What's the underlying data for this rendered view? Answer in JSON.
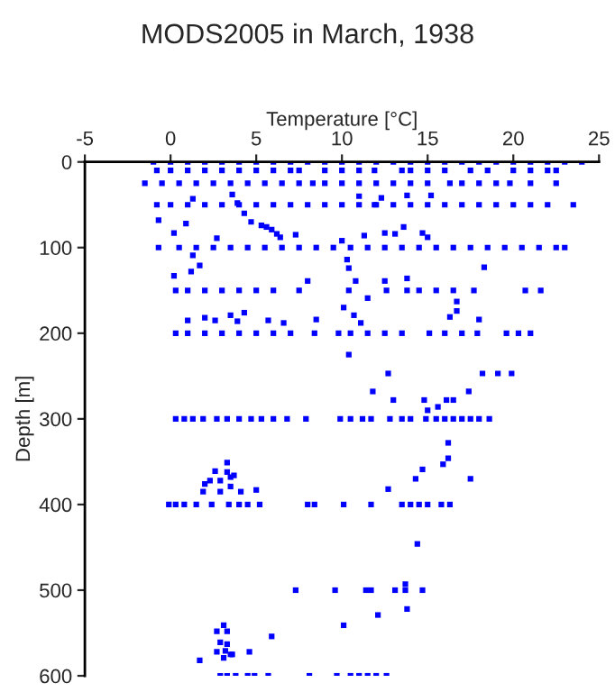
{
  "chart_data": {
    "type": "scatter",
    "title": "MODS2005 in March, 1938",
    "xlabel": "Temperature [°C]",
    "ylabel": "Depth [m]",
    "xlim": [
      -5,
      25
    ],
    "xticks": [
      -5,
      0,
      5,
      10,
      15,
      20,
      25
    ],
    "ylim": [
      600,
      0
    ],
    "yticks": [
      0,
      100,
      200,
      300,
      400,
      500,
      600
    ],
    "grid": false,
    "marker": "square",
    "series": [
      {
        "color": "#0000ff",
        "x": [
          -1,
          0,
          1,
          2,
          3,
          4,
          5,
          6,
          7,
          8,
          9,
          10,
          11,
          12,
          13,
          14,
          15,
          16,
          17,
          18,
          19,
          20,
          21,
          22,
          23,
          24,
          -0.8,
          0,
          1,
          2,
          3,
          4,
          5,
          6,
          7,
          7.5,
          9,
          10,
          11,
          11.9,
          13.5,
          14,
          15,
          16,
          17.5,
          18.5,
          20,
          21,
          22,
          22.5,
          -1.5,
          -0.5,
          0.5,
          1.5,
          2.5,
          3.5,
          4.5,
          5.5,
          6.5,
          7.5,
          8.3,
          9,
          10,
          11,
          12,
          13,
          14,
          15,
          16.3,
          17,
          18,
          19,
          19.8,
          21,
          22.5,
          -0.8,
          0,
          1,
          2,
          3,
          4,
          5,
          6,
          7,
          8,
          9,
          10,
          11,
          12,
          13,
          14,
          15,
          16,
          17,
          18,
          19,
          20,
          21,
          22,
          23.5,
          -0.7,
          0.5,
          1.5,
          2.5,
          3.5,
          4.5,
          5.5,
          6.5,
          7.5,
          8.5,
          9.5,
          10.5,
          11.5,
          12.5,
          13.5,
          14.5,
          15.5,
          16.5,
          17.5,
          18.5,
          19.5,
          20.5,
          21.5,
          22.5,
          23,
          0.3,
          1,
          2,
          3,
          4,
          5,
          6,
          7.5,
          10.4,
          12.6,
          13.8,
          14.5,
          15.5,
          16.5,
          17.7,
          20.7,
          21.6,
          0.3,
          1,
          2,
          3,
          4,
          5,
          6,
          7,
          8.4,
          9.8,
          10.5,
          11.5,
          12.5,
          13.5,
          15.1,
          16,
          17,
          17.9,
          19.6,
          20.3,
          21,
          0.3,
          0.8,
          1.3,
          1.9,
          2.7,
          3.3,
          4,
          4.7,
          5.3,
          6,
          6.8,
          7.9,
          9.9,
          10.5,
          11.2,
          11.7,
          12.8,
          13.5,
          14,
          14.9,
          15.5,
          16,
          16.5,
          17,
          17.5,
          18,
          18.6,
          -0.1,
          0.3,
          0.8,
          1.5,
          2.4,
          3.4,
          4,
          4.5,
          5.2,
          8.0,
          8.4,
          10.1,
          11.7,
          13.5,
          14,
          14.5,
          15,
          15.8,
          16.3,
          7.3,
          9.6,
          11.4,
          11.7,
          13.1,
          13.7,
          14.7,
          13.7,
          2.9,
          3.3,
          3.8,
          4.5,
          4.9,
          5.7,
          8.1,
          9.7,
          10.5,
          11,
          11.5,
          12,
          12.6,
          -0.7,
          0.2,
          0.9,
          1.3,
          2.7,
          3.6,
          3.9,
          4.3,
          4.7,
          5.3,
          5.6,
          5.9,
          6.2,
          6.4,
          7.3,
          10.0,
          11.0,
          11.3,
          11.9,
          12.3,
          12.5,
          13.1,
          13.6,
          13.8,
          14.7,
          15.0,
          15.2,
          1.3,
          1.7,
          1.2,
          0.2,
          10.3,
          10.4,
          8.0,
          10.8,
          11.5,
          12.5,
          13.8,
          18.3,
          10.1,
          10.7,
          11.1,
          16.7,
          16.7,
          16.3,
          1.0,
          2.0,
          2.6,
          3.5,
          4.3,
          3.9,
          5.7,
          6.6,
          8.5,
          18.0,
          10.4,
          12.7,
          18.2,
          19.1,
          19.9,
          11.8,
          13.0,
          14.8,
          16.1,
          16.5,
          17.4,
          15.0,
          15.6,
          16.2,
          16.2,
          15.9,
          14.7,
          14.3,
          17.5,
          12.7,
          14.4,
          13.8,
          12.1,
          10.1,
          5.9,
          4.6,
          1.7,
          3.3,
          2.6,
          3.3,
          3.7,
          2.3,
          2.0,
          2.9,
          3.5,
          1.9,
          2.9,
          4.1,
          5.0,
          3.5,
          3.1,
          2.7,
          3.3,
          2.9,
          3.3,
          2.7,
          3.5,
          3.1,
          3.6,
          3.2
        ],
        "values": [
          0,
          0,
          0,
          0,
          0,
          0,
          0,
          0,
          0,
          0,
          0,
          0,
          0,
          0,
          0,
          0,
          0,
          0,
          0,
          0,
          0,
          0,
          0,
          0,
          0,
          0,
          10,
          10,
          10,
          10,
          10,
          10,
          10,
          10,
          10,
          10,
          10,
          10,
          10,
          10,
          10,
          10,
          10,
          10,
          10,
          10,
          10,
          10,
          10,
          10,
          25,
          25,
          25,
          25,
          25,
          25,
          25,
          25,
          25,
          25,
          25,
          25,
          25,
          25,
          25,
          25,
          25,
          25,
          25,
          25,
          25,
          25,
          25,
          25,
          25,
          50,
          50,
          50,
          50,
          50,
          50,
          50,
          50,
          50,
          50,
          50,
          50,
          50,
          50,
          50,
          50,
          50,
          50,
          50,
          50,
          50,
          50,
          50,
          50,
          50,
          100,
          100,
          100,
          100,
          100,
          100,
          100,
          100,
          100,
          100,
          100,
          100,
          100,
          100,
          100,
          100,
          100,
          100,
          100,
          100,
          100,
          100,
          100,
          100,
          100,
          150,
          150,
          150,
          150,
          150,
          150,
          150,
          150,
          150,
          150,
          150,
          150,
          150,
          150,
          150,
          150,
          150,
          200,
          200,
          200,
          200,
          200,
          200,
          200,
          200,
          200,
          200,
          200,
          200,
          200,
          200,
          200,
          200,
          200,
          200,
          200,
          200,
          200,
          300,
          300,
          300,
          300,
          300,
          300,
          300,
          300,
          300,
          300,
          300,
          300,
          300,
          300,
          300,
          300,
          300,
          300,
          300,
          300,
          300,
          300,
          300,
          300,
          300,
          300,
          300,
          400,
          400,
          400,
          400,
          400,
          400,
          400,
          400,
          400,
          400,
          400,
          400,
          400,
          400,
          400,
          400,
          400,
          400,
          400,
          500,
          500,
          500,
          500,
          500,
          500,
          500,
          493,
          600,
          600,
          600,
          600,
          600,
          600,
          600,
          600,
          600,
          600,
          600,
          600,
          600,
          68,
          83,
          72,
          43,
          89,
          38,
          48,
          60,
          70,
          74,
          76,
          79,
          84,
          88,
          85,
          92,
          40,
          86,
          50,
          42,
          83,
          84,
          76,
          39,
          83,
          88,
          39,
          109,
          121,
          128,
          133,
          114,
          124,
          139,
          139,
          159,
          139,
          136,
          123,
          170,
          179,
          188,
          163,
          174,
          181,
          185,
          182,
          185,
          179,
          176,
          186,
          185,
          188,
          184,
          184,
          225,
          247,
          247,
          247,
          247,
          268,
          278,
          278,
          278,
          278,
          268,
          290,
          286,
          328,
          346,
          353,
          359,
          370,
          370,
          382,
          446,
          522,
          529,
          541,
          554,
          572,
          582,
          351,
          361,
          362,
          366,
          372,
          376,
          372,
          379,
          385,
          385,
          385,
          383,
          368,
          541,
          548,
          548,
          561,
          563,
          572,
          575,
          579,
          575,
          571
        ]
      }
    ]
  }
}
